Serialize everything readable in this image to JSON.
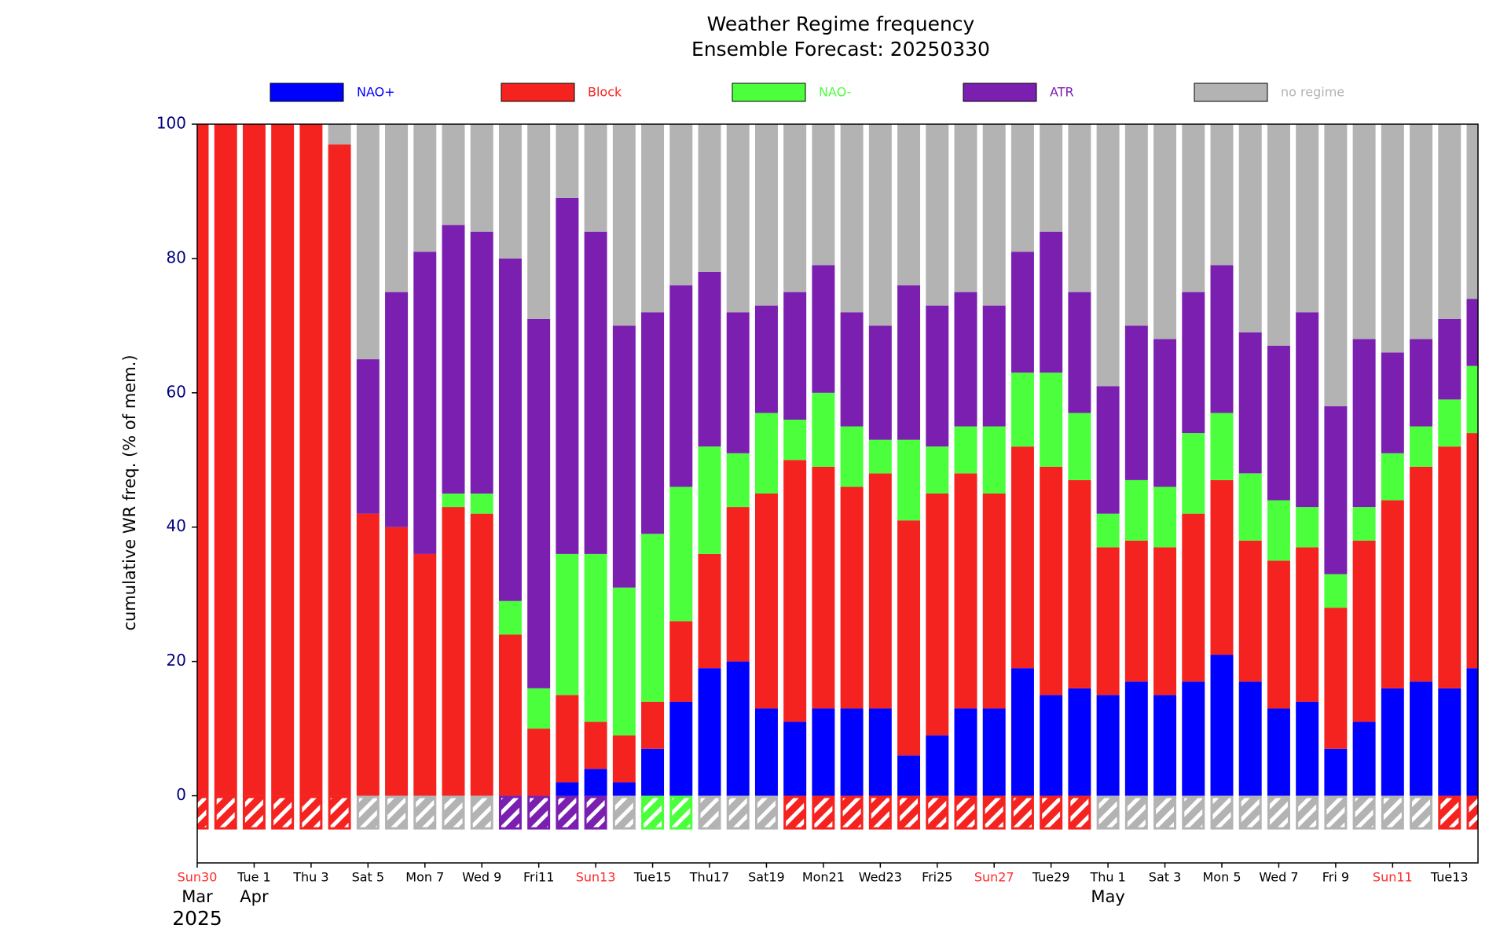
{
  "chart_data": {
    "type": "stacked_bar",
    "title": "Weather Regime frequency",
    "subtitle": "Ensemble Forecast: 20250330",
    "y_label": "cumulative WR freq. (% of mem.)",
    "categories": [
      "Sun30",
      null,
      "Tue 1",
      null,
      "Thu 3",
      null,
      "Sat 5",
      null,
      "Mon 7",
      null,
      "Wed 9",
      null,
      "Fri11",
      null,
      "Sun13",
      null,
      "Tue15",
      null,
      "Thu17",
      null,
      "Sat19",
      null,
      "Mon21",
      null,
      "Wed23",
      null,
      "Fri25",
      null,
      "Sun27",
      null,
      "Tue29",
      null,
      "Thu 1",
      null,
      "Sat 3",
      null,
      "Mon 5",
      null,
      "Wed 7",
      null,
      "Fri 9",
      null,
      "Sun11",
      null,
      "Tue13",
      null
    ],
    "month_labels": [
      "Mar",
      null,
      "Apr",
      null,
      null,
      null,
      null,
      null,
      null,
      null,
      null,
      null,
      null,
      null,
      null,
      null,
      null,
      null,
      null,
      null,
      null,
      null,
      null,
      null,
      null,
      null,
      null,
      null,
      null,
      null,
      null,
      null,
      "May",
      null,
      null,
      null,
      null,
      null,
      null,
      null,
      null,
      null,
      null,
      null,
      null,
      null
    ],
    "year_label": "2025",
    "sunday_label_color": "#ff2a2a",
    "series": [
      {
        "name": "NAO+",
        "color": "#0000ff",
        "values": [
          0,
          0,
          0,
          0,
          0,
          0,
          0,
          0,
          0,
          0,
          0,
          0,
          0,
          2,
          4,
          2,
          7,
          14,
          19,
          20,
          13,
          11,
          13,
          13,
          13,
          6,
          9,
          13,
          13,
          19,
          15,
          16,
          15,
          17,
          15,
          17,
          21,
          17,
          13,
          14,
          7,
          11,
          16,
          17,
          16,
          19
        ]
      },
      {
        "name": "Block",
        "color": "#f52320",
        "values": [
          100,
          100,
          100,
          100,
          100,
          97,
          42,
          40,
          36,
          43,
          42,
          24,
          10,
          13,
          7,
          7,
          7,
          12,
          17,
          23,
          32,
          39,
          36,
          33,
          35,
          35,
          36,
          35,
          32,
          33,
          34,
          31,
          22,
          21,
          22,
          25,
          26,
          21,
          22,
          23,
          21,
          27,
          28,
          32,
          36,
          35
        ]
      },
      {
        "name": "NAO-",
        "color": "#4cff3c",
        "values": [
          0,
          0,
          0,
          0,
          0,
          0,
          0,
          0,
          0,
          2,
          3,
          5,
          6,
          21,
          25,
          22,
          25,
          20,
          16,
          8,
          12,
          6,
          11,
          9,
          5,
          12,
          7,
          7,
          10,
          11,
          14,
          10,
          5,
          9,
          9,
          12,
          10,
          10,
          9,
          6,
          5,
          5,
          7,
          6,
          7,
          10
        ]
      },
      {
        "name": "ATR",
        "color": "#7a1fb0",
        "values": [
          0,
          0,
          0,
          0,
          0,
          0,
          23,
          35,
          45,
          40,
          39,
          51,
          55,
          53,
          48,
          39,
          33,
          30,
          26,
          21,
          16,
          19,
          19,
          17,
          17,
          23,
          21,
          20,
          18,
          18,
          21,
          18,
          19,
          23,
          22,
          21,
          22,
          21,
          23,
          29,
          25,
          25,
          15,
          13,
          12,
          10
        ]
      },
      {
        "name": "no regime",
        "color": "#b3b3b3",
        "values": [
          0,
          0,
          0,
          0,
          0,
          3,
          35,
          25,
          19,
          15,
          16,
          20,
          29,
          11,
          16,
          30,
          28,
          24,
          22,
          28,
          27,
          25,
          21,
          28,
          30,
          24,
          27,
          25,
          27,
          19,
          16,
          25,
          39,
          30,
          32,
          25,
          21,
          31,
          33,
          28,
          42,
          32,
          34,
          32,
          29,
          26
        ]
      }
    ],
    "dominant_regime": [
      "Block",
      "Block",
      "Block",
      "Block",
      "Block",
      "Block",
      "no regime",
      "no regime",
      "no regime",
      "no regime",
      "no regime",
      "ATR",
      "ATR",
      "ATR",
      "ATR",
      "no regime",
      "NAO-",
      "NAO-",
      "no regime",
      "no regime",
      "no regime",
      "Block",
      "Block",
      "Block",
      "Block",
      "Block",
      "Block",
      "Block",
      "Block",
      "Block",
      "Block",
      "Block",
      "no regime",
      "no regime",
      "no regime",
      "no regime",
      "no regime",
      "no regime",
      "no regime",
      "no regime",
      "no regime",
      "no regime",
      "no regime",
      "no regime",
      "Block",
      "Block"
    ],
    "ylim": [
      -10,
      100
    ],
    "yticks": [
      0,
      20,
      40,
      60,
      80,
      100
    ],
    "legend": "top"
  }
}
